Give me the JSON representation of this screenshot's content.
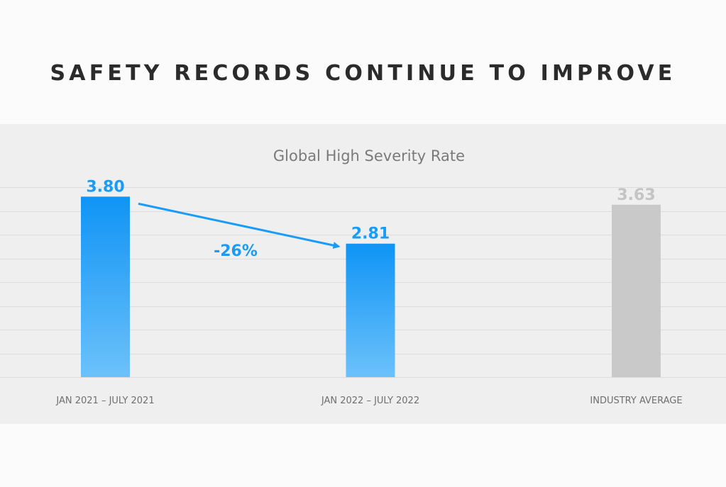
{
  "slide": {
    "title": "SAFETY RECORDS CONTINUE TO IMPROVE"
  },
  "chart_data": {
    "type": "bar",
    "title": "Global High Severity Rate",
    "categories": [
      "JAN 2021 – JULY 2021",
      "JAN 2022 – JULY 2022",
      "INDUSTRY AVERAGE"
    ],
    "values": [
      3.8,
      2.81,
      3.63
    ],
    "value_labels": [
      "3.80",
      "2.81",
      "3.63"
    ],
    "bar_colors": [
      "#1a9bf5",
      "#1a9bf5",
      "#c9c9c9"
    ],
    "label_colors": [
      "#1a9bf5",
      "#1a9bf5",
      "#c4c4c4"
    ],
    "ylim": [
      0,
      4.0
    ],
    "grid_step": 0.5,
    "grid": true,
    "xlabel": "",
    "ylabel": "",
    "annotation": {
      "text": "-26%",
      "from": 0,
      "to": 1,
      "color": "#1a9bf5"
    }
  }
}
